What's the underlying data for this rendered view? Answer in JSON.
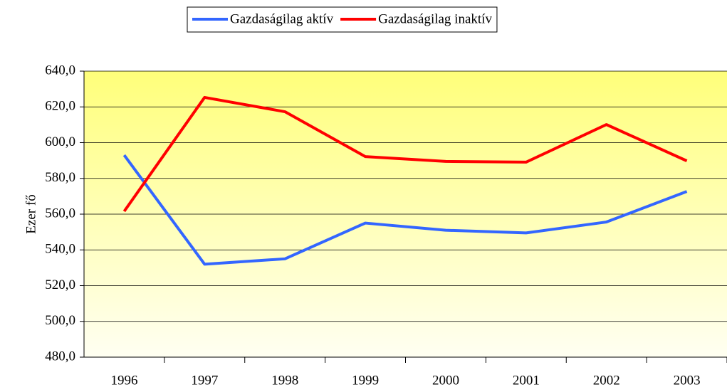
{
  "chart_data": {
    "type": "line",
    "categories": [
      "1996",
      "1997",
      "1998",
      "1999",
      "2000",
      "2001",
      "2002",
      "2003"
    ],
    "series": [
      {
        "name": "Gazdaságilag aktív",
        "color": "#3366ff",
        "values": [
          593,
          532,
          535,
          555,
          551,
          549.5,
          555.6,
          572.7
        ]
      },
      {
        "name": "Gazdaságilag inaktív",
        "color": "#ff0000",
        "values": [
          561.6,
          625.3,
          617.3,
          592.2,
          589.5,
          589.1,
          610.1,
          589.8
        ]
      }
    ],
    "ylabel": "Ezer fő",
    "ylim": [
      480,
      640
    ],
    "yticks": [
      {
        "value": 480,
        "label": "480,0"
      },
      {
        "value": 500,
        "label": "500,0"
      },
      {
        "value": 520,
        "label": "520,0"
      },
      {
        "value": 540,
        "label": "540,0"
      },
      {
        "value": 560,
        "label": "560,0"
      },
      {
        "value": 580,
        "label": "580,0"
      },
      {
        "value": 600,
        "label": "600,0"
      },
      {
        "value": 620,
        "label": "620,0"
      },
      {
        "value": 640,
        "label": "640,0"
      }
    ],
    "grid": true,
    "legend": "top"
  }
}
